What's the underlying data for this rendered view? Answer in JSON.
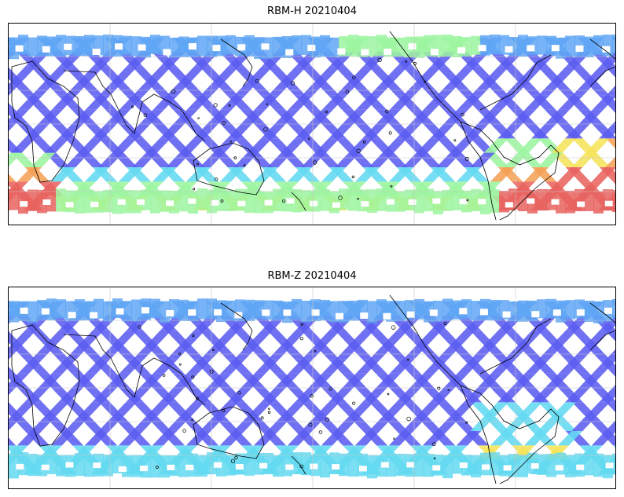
{
  "panels": [
    {
      "title": "RBM-H 20210404",
      "variant": "H"
    },
    {
      "title": "RBM-Z 20210404",
      "variant": "Z"
    }
  ],
  "colors": {
    "swath_low": "#5b5cf0",
    "swath_mid_low": "#5fa6f5",
    "swath_mid": "#63d9f0",
    "swath_mid_high": "#9cf5a0",
    "swath_high": "#f5e45a",
    "swath_very_high": "#f5a055",
    "swath_max": "#e8635f",
    "coastline": "#000000",
    "gridline": "#c8c8c8"
  }
}
